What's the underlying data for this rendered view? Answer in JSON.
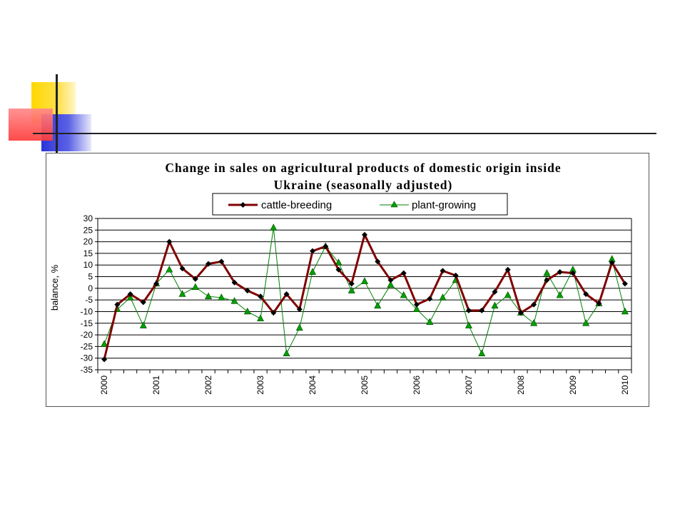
{
  "colors": {
    "cattle_line": "#800000",
    "cattle_marker": "#000000",
    "plant_line": "#008000",
    "plant_marker": "#00a000",
    "grid": "#000000",
    "deco_yellow": "#ffd800",
    "deco_blue": "#2c35d8",
    "deco_red": "#ff4040"
  },
  "chart_data": {
    "type": "line",
    "title_line1": "Change in sales on agricultural products of domestic origin inside",
    "title_line2": "Ukraine (seasonally adjusted)",
    "ylabel": "balance, %",
    "xlabel": "",
    "ylim": [
      -35,
      30
    ],
    "ytick_step": 5,
    "yticks": [
      "30",
      "25",
      "20",
      "15",
      "10",
      "5",
      "0",
      "-5",
      "-10",
      "-15",
      "-20",
      "-25",
      "-30",
      "-35"
    ],
    "grid": "horizontal",
    "legend_position": "top",
    "x_year_labels": [
      "2000",
      "2001",
      "2002",
      "2003",
      "2004",
      "2005",
      "2006",
      "2007",
      "2008",
      "2009",
      "2010"
    ],
    "points_per_year": 4,
    "series": [
      {
        "name": "cattle-breeding",
        "marker": "diamond",
        "values": [
          -30.5,
          -7,
          -2.5,
          -6,
          2,
          20,
          8.5,
          4,
          10.5,
          11.5,
          2.5,
          -1,
          -3.5,
          -10.5,
          -2.5,
          -9,
          16,
          18,
          8,
          2,
          23,
          11.5,
          3.5,
          6.5,
          -7,
          -4.5,
          7.5,
          5.5,
          -9.5,
          -9.5,
          -1.5,
          8,
          -10.5,
          -7,
          3.5,
          7,
          6.5,
          -2.5,
          -6.5,
          11,
          2
        ]
      },
      {
        "name": "plant-growing",
        "marker": "triangle",
        "values": [
          -24,
          -9,
          -4,
          -16,
          2,
          8,
          -2.5,
          0.5,
          -3.5,
          -4,
          -5.5,
          -10,
          -13,
          26,
          -28,
          -17,
          7,
          18,
          11,
          -1,
          3,
          -7.5,
          1.5,
          -3,
          -9,
          -14.5,
          -4,
          3.5,
          -16,
          -28,
          -7.5,
          -3,
          -10.5,
          -15,
          6.5,
          -3,
          8,
          -15,
          -6.5,
          12.5,
          -10
        ]
      }
    ]
  }
}
